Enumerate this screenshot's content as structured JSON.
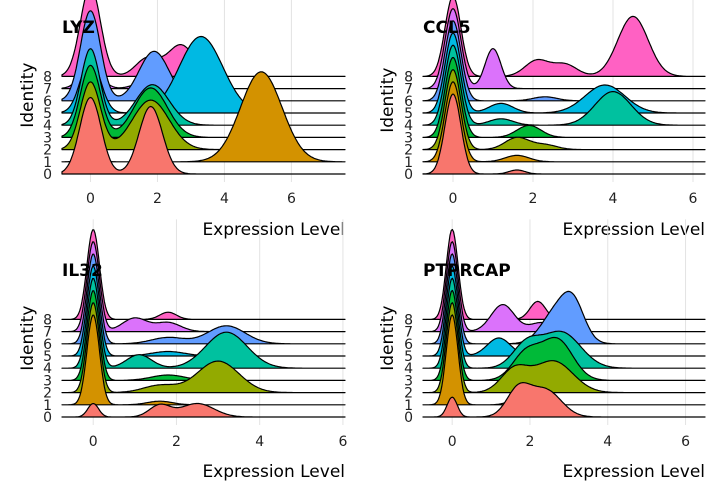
{
  "chart_data": [
    {
      "type": "ridgeline",
      "title": "LYZ",
      "xlabel": "Expression Level",
      "ylabel": "Identity",
      "xlim": [
        -0.85,
        7.6
      ],
      "x_ticks": [
        0,
        2,
        4,
        6
      ],
      "categories": [
        "0",
        "1",
        "2",
        "3",
        "4",
        "5",
        "6",
        "7",
        "8"
      ],
      "series": [
        {
          "name": "0",
          "color": "#F8766D",
          "components": [
            [
              0,
              0.32,
              0.85
            ],
            [
              1.8,
              0.35,
              0.75
            ]
          ]
        },
        {
          "name": "1",
          "color": "#D39200",
          "components": [
            [
              5.1,
              0.62,
              1.0
            ],
            [
              0,
              0.25,
              0.05
            ]
          ]
        },
        {
          "name": "2",
          "color": "#93AA00",
          "components": [
            [
              0,
              0.3,
              0.75
            ],
            [
              1.8,
              0.55,
              0.55
            ]
          ]
        },
        {
          "name": "3",
          "color": "#00BA38",
          "components": [
            [
              0,
              0.3,
              0.8
            ],
            [
              1.8,
              0.5,
              0.55
            ]
          ]
        },
        {
          "name": "4",
          "color": "#00C19F",
          "components": [
            [
              0,
              0.28,
              0.85
            ],
            [
              1.85,
              0.5,
              0.45
            ]
          ]
        },
        {
          "name": "5",
          "color": "#00B9E3",
          "components": [
            [
              0,
              0.3,
              0.6
            ],
            [
              3.3,
              0.65,
              0.85
            ]
          ]
        },
        {
          "name": "6",
          "color": "#619CFF",
          "components": [
            [
              0,
              0.3,
              1.0
            ],
            [
              1.9,
              0.45,
              0.55
            ]
          ]
        },
        {
          "name": "7",
          "color": "#DB72FB",
          "components": [
            [
              0,
              0.3,
              0.25
            ],
            [
              1.9,
              0.4,
              0.15
            ]
          ]
        },
        {
          "name": "8",
          "color": "#FF61C3",
          "components": [
            [
              0,
              0.3,
              1.0
            ],
            [
              1.7,
              0.35,
              0.2
            ],
            [
              2.7,
              0.4,
              0.35
            ]
          ]
        }
      ]
    },
    {
      "type": "ridgeline",
      "title": "CCL5",
      "xlabel": "Expression Level",
      "ylabel": "Identity",
      "xlim": [
        -0.75,
        6.3
      ],
      "x_ticks": [
        0,
        2,
        4,
        6
      ],
      "categories": [
        "0",
        "1",
        "2",
        "3",
        "4",
        "5",
        "6",
        "7",
        "8"
      ],
      "series": [
        {
          "name": "0",
          "color": "#F8766D",
          "components": [
            [
              0,
              0.2,
              1.0
            ],
            [
              1.6,
              0.2,
              0.05
            ]
          ]
        },
        {
          "name": "1",
          "color": "#D39200",
          "components": [
            [
              0,
              0.2,
              1.0
            ],
            [
              1.6,
              0.3,
              0.08
            ]
          ]
        },
        {
          "name": "2",
          "color": "#93AA00",
          "components": [
            [
              0,
              0.2,
              1.0
            ],
            [
              1.6,
              0.3,
              0.15
            ],
            [
              2.3,
              0.3,
              0.06
            ]
          ]
        },
        {
          "name": "3",
          "color": "#00BA38",
          "components": [
            [
              0,
              0.2,
              1.0
            ],
            [
              1.9,
              0.3,
              0.15
            ]
          ]
        },
        {
          "name": "4",
          "color": "#00C19F",
          "components": [
            [
              0,
              0.2,
              1.0
            ],
            [
              1.2,
              0.3,
              0.08
            ],
            [
              4.0,
              0.45,
              0.42
            ]
          ]
        },
        {
          "name": "5",
          "color": "#00B9E3",
          "components": [
            [
              0,
              0.2,
              1.0
            ],
            [
              1.2,
              0.3,
              0.12
            ],
            [
              3.8,
              0.5,
              0.35
            ]
          ]
        },
        {
          "name": "6",
          "color": "#619CFF",
          "components": [
            [
              0,
              0.2,
              1.0
            ],
            [
              2.3,
              0.3,
              0.05
            ]
          ]
        },
        {
          "name": "7",
          "color": "#DB72FB",
          "components": [
            [
              0,
              0.2,
              1.0
            ],
            [
              1.0,
              0.2,
              0.5
            ]
          ]
        },
        {
          "name": "8",
          "color": "#FF61C3",
          "components": [
            [
              0,
              0.2,
              1.0
            ],
            [
              2.1,
              0.3,
              0.2
            ],
            [
              2.8,
              0.3,
              0.15
            ],
            [
              4.5,
              0.38,
              0.75
            ]
          ]
        }
      ]
    },
    {
      "type": "ridgeline",
      "title": "IL32",
      "xlabel": "Expression Level",
      "ylabel": "Identity",
      "xlim": [
        -0.75,
        6.05
      ],
      "x_ticks": [
        0,
        2,
        4,
        6
      ],
      "categories": [
        "0",
        "1",
        "2",
        "3",
        "4",
        "5",
        "6",
        "7",
        "8"
      ],
      "series": [
        {
          "name": "0",
          "color": "#F8766D",
          "components": [
            [
              0,
              0.13,
              0.15
            ],
            [
              1.6,
              0.25,
              0.13
            ],
            [
              2.5,
              0.4,
              0.15
            ]
          ]
        },
        {
          "name": "1",
          "color": "#D39200",
          "components": [
            [
              0,
              0.15,
              1.0
            ],
            [
              1.6,
              0.3,
              0.04
            ]
          ]
        },
        {
          "name": "2",
          "color": "#93AA00",
          "components": [
            [
              0,
              0.15,
              1.0
            ],
            [
              1.6,
              0.4,
              0.08
            ],
            [
              3.0,
              0.5,
              0.35
            ]
          ]
        },
        {
          "name": "3",
          "color": "#00BA38",
          "components": [
            [
              0,
              0.15,
              1.0
            ],
            [
              1.8,
              0.4,
              0.06
            ]
          ]
        },
        {
          "name": "4",
          "color": "#00C19F",
          "components": [
            [
              0,
              0.15,
              1.0
            ],
            [
              1.1,
              0.3,
              0.15
            ],
            [
              3.2,
              0.5,
              0.4
            ]
          ]
        },
        {
          "name": "5",
          "color": "#00B9E3",
          "components": [
            [
              0,
              0.15,
              1.0
            ],
            [
              1.8,
              0.4,
              0.05
            ]
          ]
        },
        {
          "name": "6",
          "color": "#619CFF",
          "components": [
            [
              0,
              0.15,
              1.0
            ],
            [
              1.8,
              0.4,
              0.07
            ],
            [
              3.2,
              0.45,
              0.2
            ]
          ]
        },
        {
          "name": "7",
          "color": "#DB72FB",
          "components": [
            [
              0,
              0.15,
              1.0
            ],
            [
              1.0,
              0.3,
              0.15
            ],
            [
              1.8,
              0.3,
              0.1
            ]
          ]
        },
        {
          "name": "8",
          "color": "#FF61C3",
          "components": [
            [
              0,
              0.15,
              1.0
            ],
            [
              1.8,
              0.2,
              0.08
            ]
          ]
        }
      ]
    },
    {
      "type": "ridgeline",
      "title": "PTPRCAP",
      "xlabel": "Expression Level",
      "ylabel": "Identity",
      "xlim": [
        -0.75,
        6.5
      ],
      "x_ticks": [
        0,
        2,
        4,
        6
      ],
      "categories": [
        "0",
        "1",
        "2",
        "3",
        "4",
        "5",
        "6",
        "7",
        "8"
      ],
      "series": [
        {
          "name": "0",
          "color": "#F8766D",
          "components": [
            [
              0,
              0.13,
              0.22
            ],
            [
              1.7,
              0.3,
              0.3
            ],
            [
              2.4,
              0.4,
              0.3
            ]
          ]
        },
        {
          "name": "1",
          "color": "#D39200",
          "components": [
            [
              0,
              0.15,
              1.0
            ],
            [
              1.6,
              0.2,
              0.05
            ]
          ]
        },
        {
          "name": "2",
          "color": "#93AA00",
          "components": [
            [
              0,
              0.15,
              1.0
            ],
            [
              1.6,
              0.35,
              0.25
            ],
            [
              2.6,
              0.5,
              0.35
            ]
          ]
        },
        {
          "name": "3",
          "color": "#00BA38",
          "components": [
            [
              0,
              0.15,
              1.0
            ],
            [
              1.9,
              0.35,
              0.3
            ],
            [
              2.7,
              0.4,
              0.45
            ]
          ]
        },
        {
          "name": "4",
          "color": "#00C19F",
          "components": [
            [
              0,
              0.15,
              1.0
            ],
            [
              1.9,
              0.35,
              0.25
            ],
            [
              2.8,
              0.5,
              0.4
            ]
          ]
        },
        {
          "name": "5",
          "color": "#00B9E3",
          "components": [
            [
              0,
              0.15,
              1.0
            ],
            [
              1.2,
              0.3,
              0.2
            ]
          ]
        },
        {
          "name": "6",
          "color": "#619CFF",
          "components": [
            [
              0,
              0.15,
              1.0
            ],
            [
              2.6,
              0.35,
              0.3
            ],
            [
              3.1,
              0.3,
              0.45
            ]
          ]
        },
        {
          "name": "7",
          "color": "#DB72FB",
          "components": [
            [
              0,
              0.15,
              1.0
            ],
            [
              1.3,
              0.3,
              0.3
            ],
            [
              2.3,
              0.3,
              0.1
            ]
          ]
        },
        {
          "name": "8",
          "color": "#FF61C3",
          "components": [
            [
              0,
              0.15,
              1.0
            ],
            [
              2.2,
              0.2,
              0.2
            ]
          ]
        }
      ]
    }
  ]
}
